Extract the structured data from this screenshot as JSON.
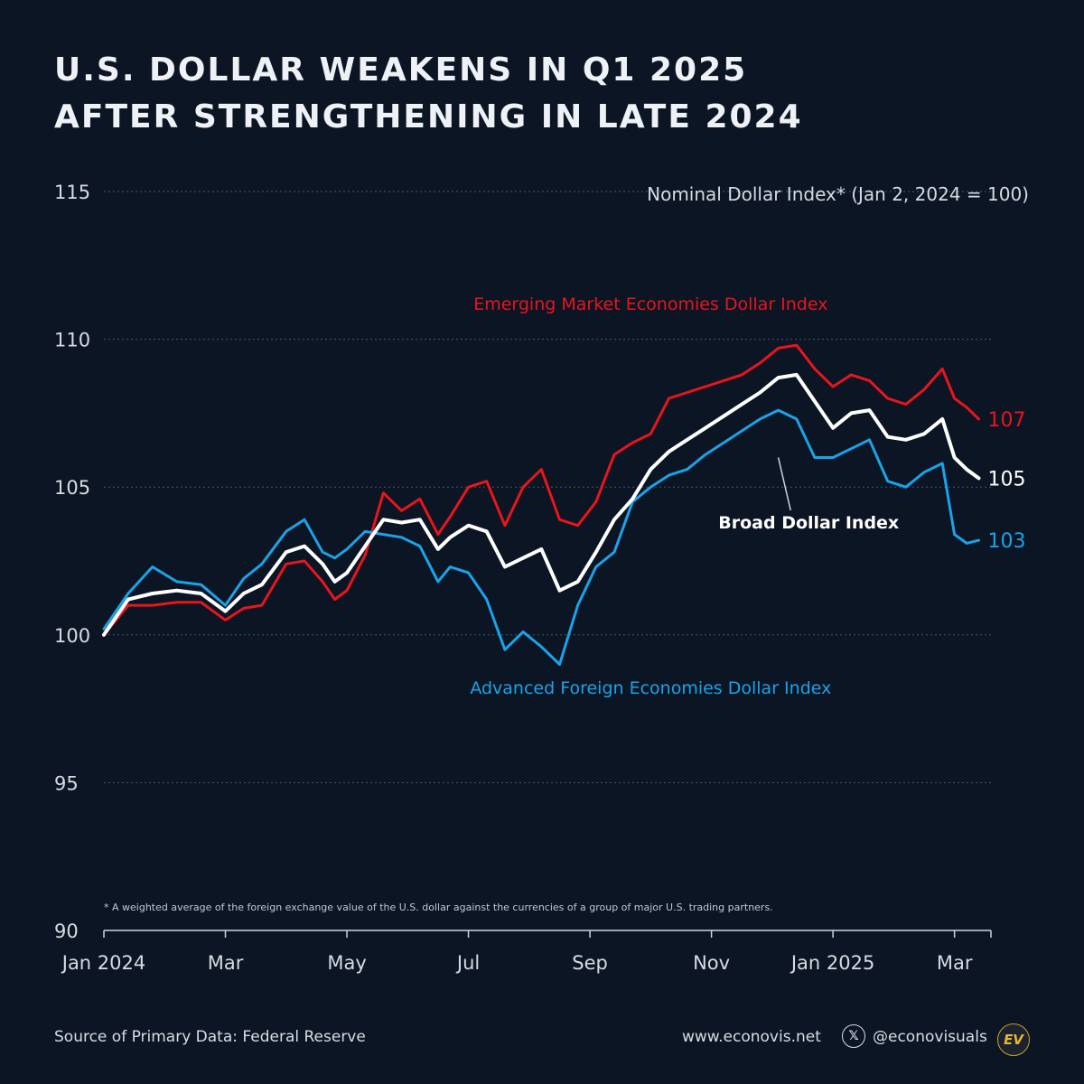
{
  "title": {
    "line1": "U.S. DOLLAR WEAKENS IN Q1 2025",
    "line2": "AFTER STRENGTHENING IN LATE 2024"
  },
  "footer": {
    "source": "Source of Primary Data: Federal Reserve",
    "website": "www.econovis.net",
    "x_icon": "x-logo-icon",
    "x_glyph": "𝕏",
    "handle": "@econovisuals",
    "logo_text": "EV"
  },
  "colors": {
    "background": "#0b1524",
    "emerging": "#e8151c",
    "advanced": "#1aa3e8",
    "broad": "#ffffff",
    "grid": "#4a5566",
    "logo_gold": "#e7b930"
  },
  "chart_data": {
    "type": "line",
    "title": "Nominal Dollar Index* (Jan 2, 2024 = 100)",
    "footnote": "* A weighted average of the foreign exchange value of the U.S. dollar against the currencies of a group of major U.S. trading partners.",
    "x_unit": "months since Jan 1, 2024",
    "xlim": [
      0,
      14.6
    ],
    "ylim": [
      90,
      115
    ],
    "yticks": [
      90,
      95,
      100,
      105,
      110,
      115
    ],
    "ytick_labels": [
      "90",
      "95",
      "100",
      "105",
      "110",
      "115"
    ],
    "xticks": [
      {
        "label": "Jan 2024",
        "x": 0
      },
      {
        "label": "Mar",
        "x": 2
      },
      {
        "label": "May",
        "x": 4
      },
      {
        "label": "Jul",
        "x": 6
      },
      {
        "label": "Sep",
        "x": 8
      },
      {
        "label": "Nov",
        "x": 10
      },
      {
        "label": "Jan 2025",
        "x": 12
      },
      {
        "label": "Mar",
        "x": 14
      }
    ],
    "grid": true,
    "series": [
      {
        "name": "Emerging Market Economies Dollar Index",
        "key": "emerging",
        "end_label": "107",
        "x": [
          0,
          0.4,
          0.8,
          1.2,
          1.6,
          2.0,
          2.3,
          2.6,
          3.0,
          3.3,
          3.6,
          3.8,
          4.0,
          4.3,
          4.6,
          4.9,
          5.2,
          5.5,
          5.7,
          6.0,
          6.3,
          6.6,
          6.9,
          7.2,
          7.5,
          7.8,
          8.1,
          8.4,
          8.7,
          9.0,
          9.3,
          9.6,
          9.9,
          10.2,
          10.5,
          10.8,
          11.1,
          11.4,
          11.7,
          12.0,
          12.3,
          12.6,
          12.9,
          13.2,
          13.5,
          13.8,
          14.0,
          14.2,
          14.4
        ],
        "y": [
          100.0,
          101.0,
          101.0,
          101.1,
          101.1,
          100.5,
          100.9,
          101.0,
          102.4,
          102.5,
          101.8,
          101.2,
          101.5,
          102.7,
          104.8,
          104.2,
          104.6,
          103.4,
          104.0,
          105.0,
          105.2,
          103.7,
          105.0,
          105.6,
          103.9,
          103.7,
          104.5,
          106.1,
          106.5,
          106.8,
          108.0,
          108.2,
          108.4,
          108.6,
          108.8,
          109.2,
          109.7,
          109.8,
          109.0,
          108.4,
          108.8,
          108.6,
          108.0,
          107.8,
          108.3,
          109.0,
          108.0,
          107.7,
          107.3
        ]
      },
      {
        "name": "Advanced Foreign Economies Dollar Index",
        "key": "advanced",
        "end_label": "103",
        "x": [
          0,
          0.4,
          0.8,
          1.2,
          1.6,
          2.0,
          2.3,
          2.6,
          3.0,
          3.3,
          3.6,
          3.8,
          4.0,
          4.3,
          4.6,
          4.9,
          5.2,
          5.5,
          5.7,
          6.0,
          6.3,
          6.6,
          6.9,
          7.2,
          7.5,
          7.8,
          8.1,
          8.4,
          8.7,
          9.0,
          9.3,
          9.6,
          9.9,
          10.2,
          10.5,
          10.8,
          11.1,
          11.4,
          11.7,
          12.0,
          12.3,
          12.6,
          12.9,
          13.2,
          13.5,
          13.8,
          14.0,
          14.2,
          14.4
        ],
        "y": [
          100.2,
          101.4,
          102.3,
          101.8,
          101.7,
          101.0,
          101.9,
          102.4,
          103.5,
          103.9,
          102.8,
          102.6,
          102.9,
          103.5,
          103.4,
          103.3,
          103.0,
          101.8,
          102.3,
          102.1,
          101.2,
          99.5,
          100.1,
          99.6,
          99.0,
          101.0,
          102.3,
          102.8,
          104.5,
          105.0,
          105.4,
          105.6,
          106.1,
          106.5,
          106.9,
          107.3,
          107.6,
          107.3,
          106.0,
          106.0,
          106.3,
          106.6,
          105.2,
          105.0,
          105.5,
          105.8,
          103.4,
          103.1,
          103.2
        ]
      },
      {
        "name": "Broad Dollar Index",
        "key": "broad",
        "end_label": "105",
        "x": [
          0,
          0.4,
          0.8,
          1.2,
          1.6,
          2.0,
          2.3,
          2.6,
          3.0,
          3.3,
          3.6,
          3.8,
          4.0,
          4.3,
          4.6,
          4.9,
          5.2,
          5.5,
          5.7,
          6.0,
          6.3,
          6.6,
          6.9,
          7.2,
          7.5,
          7.8,
          8.1,
          8.4,
          8.7,
          9.0,
          9.3,
          9.6,
          9.9,
          10.2,
          10.5,
          10.8,
          11.1,
          11.4,
          11.7,
          12.0,
          12.3,
          12.6,
          12.9,
          13.2,
          13.5,
          13.8,
          14.0,
          14.2,
          14.4
        ],
        "y": [
          100.0,
          101.2,
          101.4,
          101.5,
          101.4,
          100.8,
          101.4,
          101.7,
          102.8,
          103.0,
          102.4,
          101.8,
          102.1,
          103.0,
          103.9,
          103.8,
          103.9,
          102.9,
          103.3,
          103.7,
          103.5,
          102.3,
          102.6,
          102.9,
          101.5,
          101.8,
          102.8,
          103.9,
          104.6,
          105.6,
          106.2,
          106.6,
          107.0,
          107.4,
          107.8,
          108.2,
          108.7,
          108.8,
          107.9,
          107.0,
          107.5,
          107.6,
          106.7,
          106.6,
          106.8,
          107.3,
          106.0,
          105.6,
          105.3
        ]
      }
    ],
    "annotations": [
      {
        "text": "Emerging Market Economies Dollar Index",
        "series": "emerging",
        "x": 9.0,
        "y": 111.0
      },
      {
        "text": "Advanced Foreign Economies Dollar Index",
        "series": "advanced",
        "x": 9.0,
        "y": 98.0
      },
      {
        "text": "Broad Dollar Index",
        "series": "broad",
        "x": 11.6,
        "y": 103.6,
        "arrow_to": {
          "x": 11.1,
          "y": 106.0
        }
      }
    ]
  }
}
